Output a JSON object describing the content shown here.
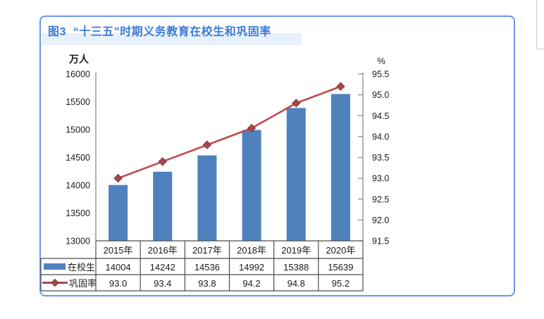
{
  "figure": {
    "number_label": "图3",
    "title": "图3  “十三五”时期义务教育在校生和巩固率"
  },
  "chart_data": {
    "type": "bar",
    "subtype": "combo-bar-line",
    "categories": [
      "2015年",
      "2016年",
      "2017年",
      "2018年",
      "2019年",
      "2020年"
    ],
    "series": [
      {
        "name": "在校生",
        "type": "bar",
        "axis": "left",
        "values": [
          14004,
          14242,
          14536,
          14992,
          15388,
          15639
        ]
      },
      {
        "name": "巩固率",
        "type": "line",
        "axis": "right",
        "values": [
          93.0,
          93.4,
          93.8,
          94.2,
          94.8,
          95.2
        ]
      }
    ],
    "title": "“十三五”时期义务教育在校生和巩固率",
    "xlabel": "",
    "left_axis": {
      "unit": "万人",
      "min": 13000,
      "max": 16000,
      "tick_step": 500,
      "ticks": [
        16000,
        15500,
        15000,
        14500,
        14000,
        13500,
        13000
      ]
    },
    "right_axis": {
      "unit": "%",
      "min": 91.5,
      "max": 95.5,
      "tick_step": 0.5,
      "ticks": [
        95.5,
        95.0,
        94.5,
        94.0,
        93.5,
        93.0,
        92.5,
        92.0,
        91.5
      ]
    },
    "grid": false,
    "legend_position": "table-left",
    "data_table_shown": true
  },
  "colors": {
    "bar_fill": "#4f81bd",
    "line_stroke": "#be4b4f",
    "marker_fill": "#a8474d",
    "marker_edge": "#84383c",
    "axis_line": "#8a8a8a",
    "table_border": "#4d4d4d",
    "title_text": "#3c79dc",
    "title_band": "#e7f1fb",
    "frame_border": "#6d95ec",
    "text": "#1a1a1a"
  }
}
